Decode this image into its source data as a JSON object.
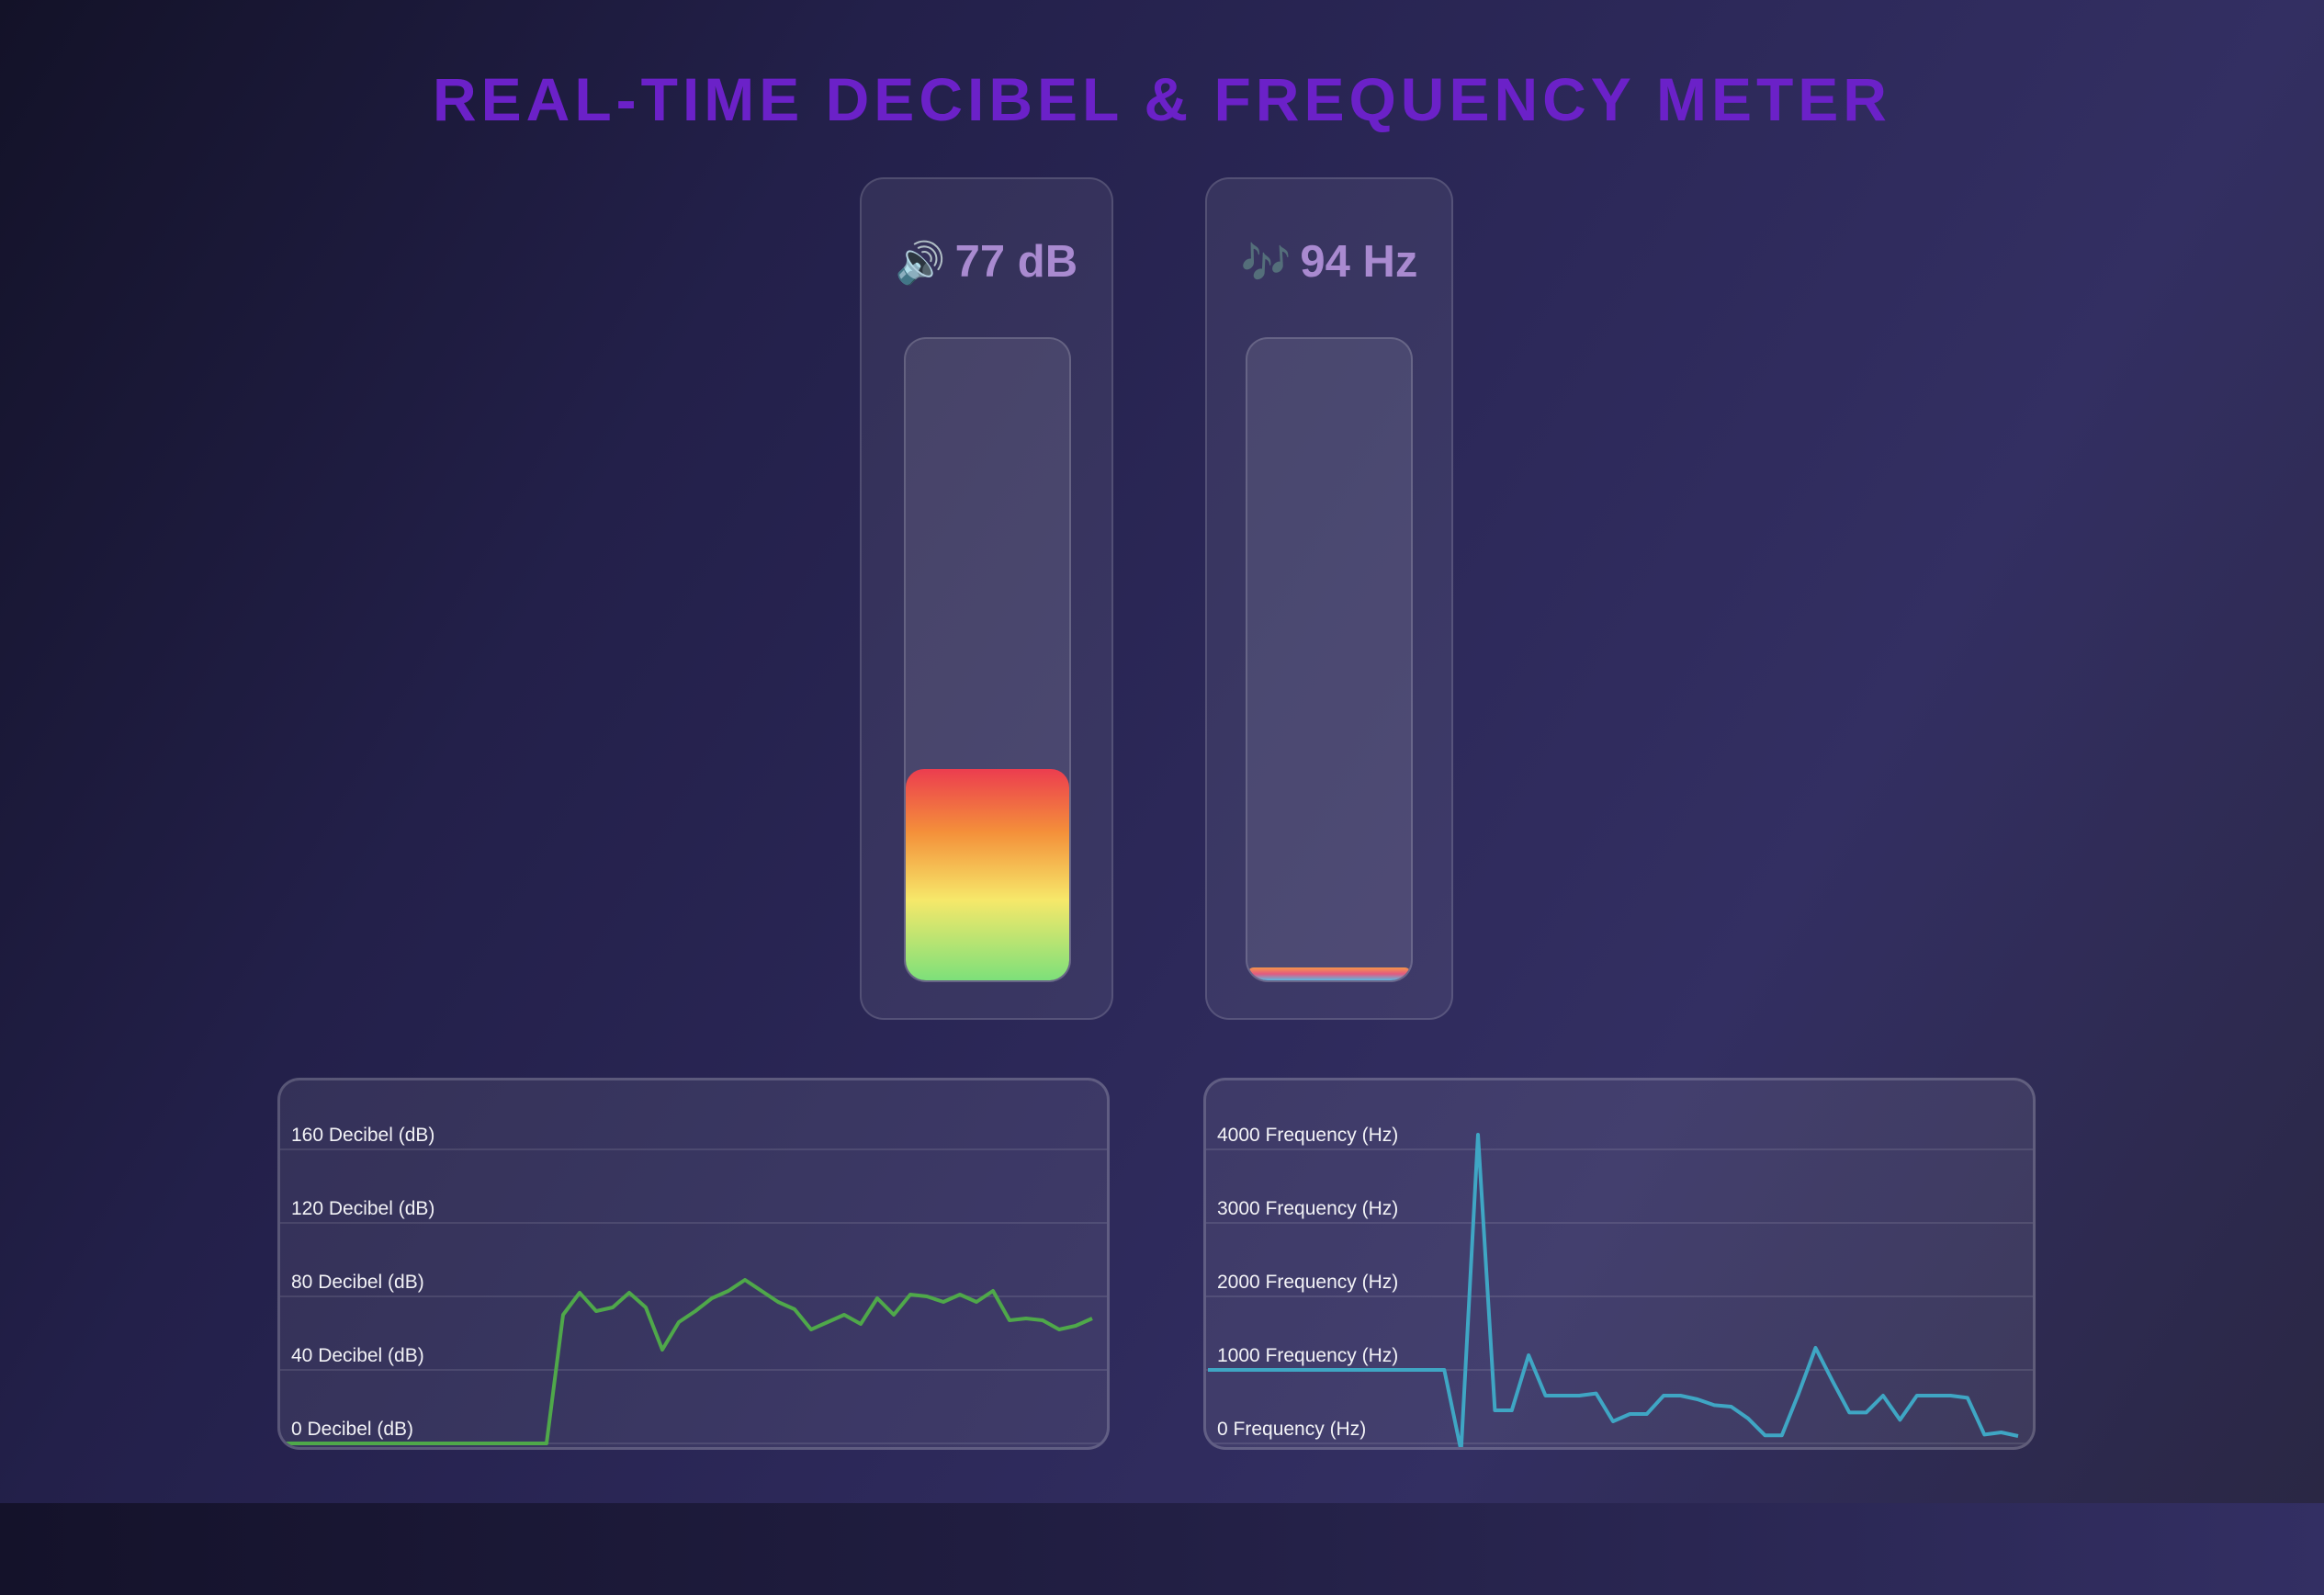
{
  "title": "REAL-TIME DECIBEL & FREQUENCY METER",
  "meters": {
    "decibel": {
      "icon": "speaker-icon",
      "glyph": "🔊",
      "value": "77 dB",
      "level": 0.33
    },
    "frequency": {
      "icon": "music-notes-icon",
      "glyph": "🎶",
      "value": "94 Hz",
      "level": 0.02
    }
  },
  "chart_data": [
    {
      "type": "line",
      "series": [
        {
          "values": [
            0,
            0,
            0,
            0,
            0,
            0,
            0,
            0,
            0,
            0,
            0,
            0,
            0,
            0,
            0,
            0,
            0,
            70,
            82,
            72,
            74,
            82,
            74,
            51,
            66,
            72,
            79,
            83,
            89,
            83,
            77,
            73,
            62,
            66,
            70,
            65,
            79,
            70,
            81,
            80,
            77,
            81,
            77,
            83,
            67,
            68,
            67,
            62,
            64,
            68
          ]
        }
      ],
      "yticks": [
        "0 Decibel (dB)",
        "40 Decibel (dB)",
        "80 Decibel (dB)",
        "120 Decibel (dB)",
        "160 Decibel (dB)"
      ],
      "ylim": [
        0,
        160
      ],
      "color": "#4fa84a",
      "grid": true
    },
    {
      "type": "line",
      "series": [
        {
          "values": [
            1000,
            1000,
            1000,
            1000,
            1000,
            1000,
            1000,
            1000,
            1000,
            1000,
            1000,
            1000,
            1000,
            1000,
            1000,
            -100,
            4200,
            450,
            450,
            1200,
            650,
            650,
            650,
            680,
            300,
            400,
            400,
            650,
            650,
            600,
            520,
            500,
            340,
            110,
            110,
            680,
            1300,
            850,
            420,
            420,
            650,
            320,
            650,
            650,
            650,
            620,
            120,
            150,
            100
          ]
        }
      ],
      "yticks": [
        "0 Frequency (Hz)",
        "1000 Frequency (Hz)",
        "2000 Frequency (Hz)",
        "3000 Frequency (Hz)",
        "4000 Frequency (Hz)"
      ],
      "ylim": [
        0,
        4000
      ],
      "color": "#3fa6c4",
      "grid": true
    }
  ]
}
